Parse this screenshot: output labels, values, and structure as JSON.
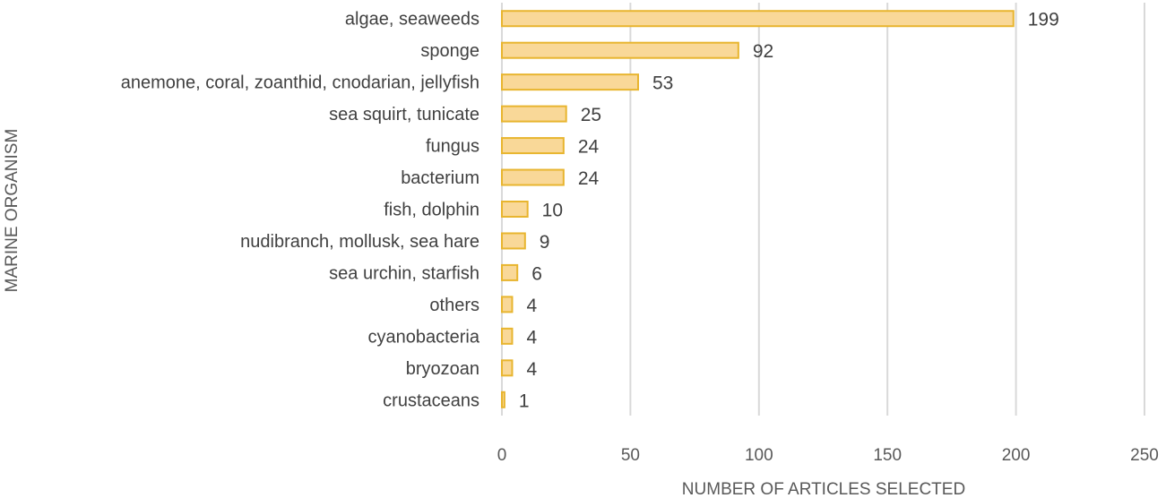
{
  "chart_data": {
    "type": "bar",
    "orientation": "horizontal",
    "categories": [
      "algae, seaweeds",
      "sponge",
      "anemone, coral, zoanthid, cnodarian, jellyfish",
      "sea squirt, tunicate",
      "fungus",
      "bacterium",
      "fish, dolphin",
      "nudibranch, mollusk, sea hare",
      "sea urchin, starfish",
      "others",
      "cyanobacteria",
      "bryozoan",
      "crustaceans"
    ],
    "values": [
      199,
      92,
      53,
      25,
      24,
      24,
      10,
      9,
      6,
      4,
      4,
      4,
      1
    ],
    "data_labels": [
      "199",
      "92",
      "53",
      "25",
      "24",
      "24",
      "10",
      "9",
      "6",
      "4",
      "4",
      "4",
      "1"
    ],
    "title": "",
    "xlabel": "NUMBER OF ARTICLES SELECTED",
    "ylabel": "MARINE ORGANISM",
    "xlim": [
      0,
      250
    ],
    "xticks": [
      0,
      50,
      100,
      150,
      200,
      250
    ],
    "xtick_labels": [
      "0",
      "50",
      "100",
      "150",
      "200",
      "250"
    ],
    "grid": "vertical",
    "legend": "none",
    "colors": {
      "bar_fill": "#f9d898",
      "bar_edge": "#e8b52f",
      "grid": "#d9d9d9",
      "text": "#404040"
    }
  }
}
